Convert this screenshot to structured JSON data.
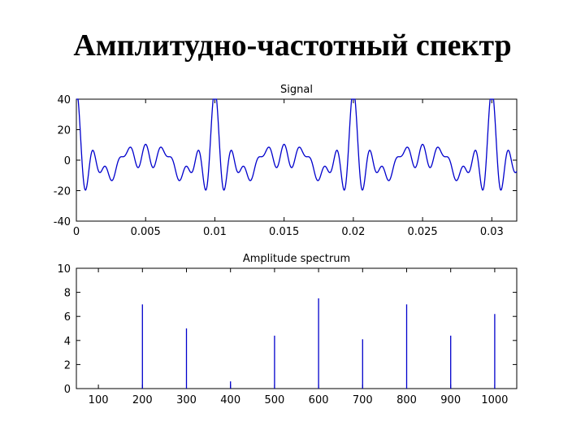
{
  "slide": {
    "title": "Амплитудно-частотный спектр"
  },
  "colors": {
    "series": "#0000cc",
    "axis": "#000000",
    "background": "#ffffff"
  },
  "chart_data": [
    {
      "type": "line",
      "title": "Signal",
      "xlabel": "",
      "ylabel": "",
      "xlim": [
        0,
        0.0318
      ],
      "ylim": [
        -40,
        40
      ],
      "xticks": [
        0,
        0.005,
        0.01,
        0.015,
        0.02,
        0.025,
        0.03
      ],
      "xtick_labels": [
        "0",
        "0.005",
        "0.01",
        "0.015",
        "0.02",
        "0.025",
        "0.03"
      ],
      "yticks": [
        40,
        20,
        0,
        -20,
        -40
      ],
      "ytick_labels": [
        "40",
        "20",
        "0",
        "-20",
        "-40"
      ],
      "grid": false,
      "series": [
        {
          "description_source": "sum of sinusoids with frequencies and amplitudes from the amplitude spectrum",
          "x_start": 0,
          "x_end": 0.0318,
          "components": [
            {
              "frequency": 200,
              "amplitude": 7
            },
            {
              "frequency": 300,
              "amplitude": 5
            },
            {
              "frequency": 400,
              "amplitude": 0.6
            },
            {
              "frequency": 500,
              "amplitude": 4.4
            },
            {
              "frequency": 600,
              "amplitude": 7.5
            },
            {
              "frequency": 700,
              "amplitude": 4.1
            },
            {
              "frequency": 800,
              "amplitude": 7
            },
            {
              "frequency": 900,
              "amplitude": 4.4
            },
            {
              "frequency": 1000,
              "amplitude": 6.2
            }
          ]
        }
      ]
    },
    {
      "type": "bar",
      "title": "Amplitude spectrum",
      "xlabel": "",
      "ylabel": "",
      "xlim": [
        50,
        1050
      ],
      "ylim": [
        0,
        10
      ],
      "categories": [
        "100",
        "200",
        "300",
        "400",
        "500",
        "600",
        "700",
        "800",
        "900",
        "1000"
      ],
      "x": [
        100,
        200,
        300,
        400,
        500,
        600,
        700,
        800,
        900,
        1000
      ],
      "values": [
        0,
        7,
        5,
        0.6,
        4.4,
        7.5,
        4.1,
        7,
        4.4,
        6.2
      ],
      "yticks": [
        10,
        8,
        6,
        4,
        2,
        0
      ],
      "ytick_labels": [
        "10",
        "8",
        "6",
        "4",
        "2",
        "0"
      ],
      "grid": false
    }
  ]
}
